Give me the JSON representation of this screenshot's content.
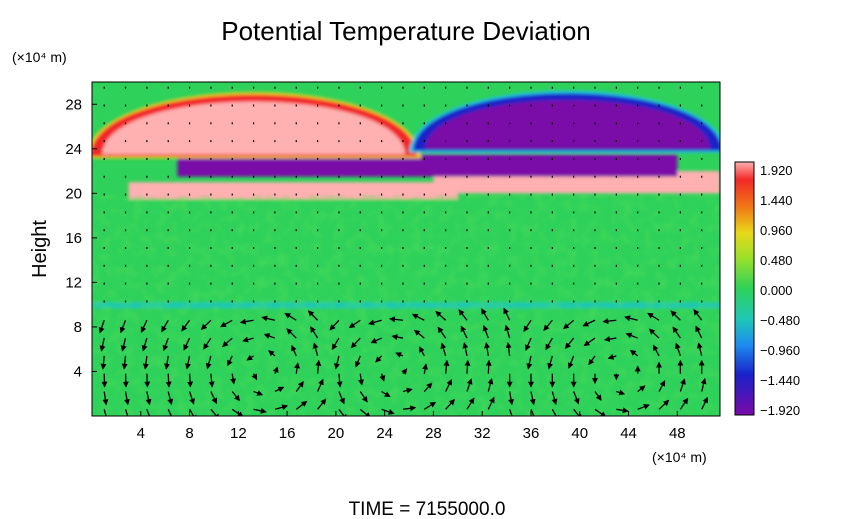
{
  "chart_data": {
    "type": "heatmap",
    "title": "Potential Temperature Deviation",
    "ylabel": "Height",
    "x_unit": "(×10⁴ m)",
    "y_unit": "(×10⁴ m)",
    "footer": "TIME = 7155000.0",
    "xlim": [
      0,
      51.5
    ],
    "ylim": [
      0,
      30
    ],
    "x_ticks": [
      4,
      8,
      12,
      16,
      20,
      24,
      28,
      32,
      36,
      40,
      44,
      48
    ],
    "y_ticks": [
      4,
      8,
      12,
      16,
      20,
      24,
      28
    ],
    "colorbar": {
      "ticks": [
        "1.920",
        "1.440",
        "0.960",
        "0.480",
        "0.000",
        "−0.480",
        "−0.960",
        "−1.440",
        "−1.920"
      ],
      "min": -1.92,
      "max": 1.92
    },
    "field_regions": [
      {
        "desc": "warm-anomaly",
        "x": [
          0,
          26.5
        ],
        "y": [
          23.5,
          30
        ],
        "value": 1.92
      },
      {
        "desc": "cold-anomaly",
        "x": [
          26.5,
          51.5
        ],
        "y": [
          24,
          30
        ],
        "value": -1.92
      },
      {
        "desc": "cold-band",
        "x": [
          7,
          48
        ],
        "y": [
          21.5,
          23.5
        ],
        "value": -1.92
      },
      {
        "desc": "warm-band",
        "x": [
          28,
          51.5
        ],
        "y": [
          20,
          22
        ],
        "value": 1.92
      },
      {
        "desc": "warm-band-lower",
        "x": [
          3,
          30
        ],
        "y": [
          19.5,
          21
        ],
        "value": 1.92
      },
      {
        "desc": "neutral-mid",
        "x": [
          0,
          51.5
        ],
        "y": [
          9.5,
          19.5
        ],
        "value": 0.2
      },
      {
        "desc": "cold-thin-line",
        "x": [
          0,
          51.5
        ],
        "y": [
          9.7,
          10.2
        ],
        "value": -0.6
      },
      {
        "desc": "neutral-low",
        "x": [
          0,
          51.5
        ],
        "y": [
          0,
          9.5
        ],
        "value": 0.0
      }
    ],
    "circulation_cells": [
      {
        "x": 14,
        "y": 4.2
      },
      {
        "x": 25,
        "y": 4.2
      },
      {
        "x": 43.5,
        "y": 3.8
      }
    ],
    "grid": false
  }
}
